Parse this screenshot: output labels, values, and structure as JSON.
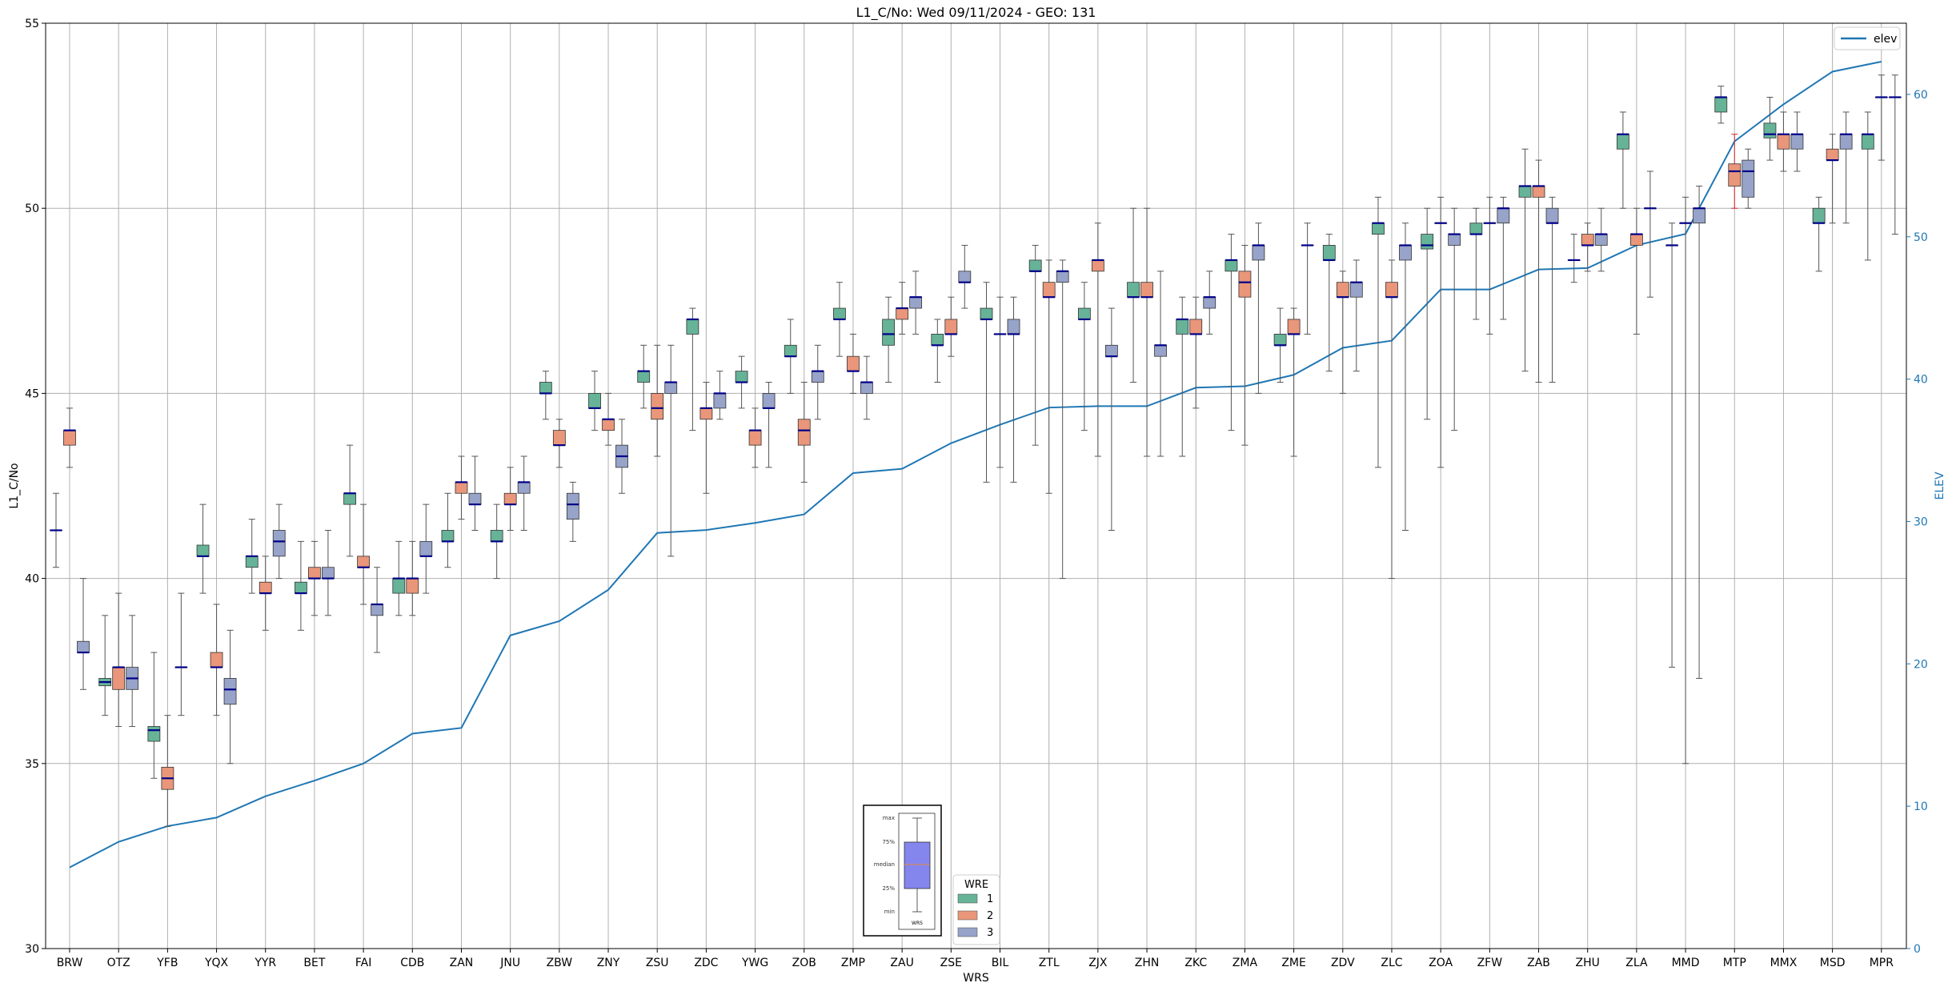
{
  "chart_data": {
    "type": "box",
    "title": "L1_C/No: Wed 09/11/2024 - GEO: 131",
    "xlabel": "WRS",
    "ylabel": "L1_C/No",
    "y2label": "ELEV",
    "ylim": [
      30,
      55
    ],
    "y2lim": [
      0,
      65
    ],
    "yticks": [
      30,
      35,
      40,
      45,
      50,
      55
    ],
    "y2ticks": [
      0,
      10,
      20,
      30,
      40,
      50,
      60
    ],
    "grid": true,
    "categories": [
      "BRW",
      "OTZ",
      "YFB",
      "YQX",
      "YYR",
      "BET",
      "FAI",
      "CDB",
      "ZAN",
      "JNU",
      "ZBW",
      "ZNY",
      "ZSU",
      "ZDC",
      "YWG",
      "ZOB",
      "ZMP",
      "ZAU",
      "ZSE",
      "BIL",
      "ZTL",
      "ZJX",
      "ZHN",
      "ZKC",
      "ZMA",
      "ZME",
      "ZDV",
      "ZLC",
      "ZOA",
      "ZFW",
      "ZAB",
      "ZHU",
      "ZLA",
      "MMD",
      "MTP",
      "MMX",
      "MSD",
      "MPR"
    ],
    "series": [
      {
        "name": "1",
        "color": "#66b398",
        "values": [
          [
            40.3,
            41.3,
            41.3,
            41.3,
            42.3
          ],
          [
            36.3,
            37.1,
            37.2,
            37.3,
            39.0
          ],
          [
            34.6,
            35.6,
            35.9,
            36.0,
            38.0
          ],
          [
            39.6,
            40.6,
            40.6,
            40.9,
            42.0
          ],
          [
            39.6,
            40.3,
            40.6,
            40.6,
            41.6
          ],
          [
            38.6,
            39.6,
            39.6,
            39.9,
            41.0
          ],
          [
            40.6,
            42.0,
            42.3,
            42.3,
            43.6
          ],
          [
            39.0,
            39.6,
            40.0,
            40.0,
            41.0
          ],
          [
            40.3,
            41.0,
            41.0,
            41.3,
            42.3
          ],
          [
            40.0,
            41.0,
            41.0,
            41.3,
            42.0
          ],
          [
            44.3,
            45.0,
            45.0,
            45.3,
            45.6
          ],
          [
            44.0,
            44.6,
            44.6,
            45.0,
            45.6
          ],
          [
            44.6,
            45.3,
            45.6,
            45.6,
            46.3
          ],
          [
            44.0,
            46.6,
            47.0,
            47.0,
            47.3
          ],
          [
            44.6,
            45.3,
            45.3,
            45.6,
            46.0
          ],
          [
            45.0,
            46.0,
            46.0,
            46.3,
            47.0
          ],
          [
            46.0,
            47.0,
            47.0,
            47.3,
            48.0
          ],
          [
            45.3,
            46.3,
            46.6,
            47.0,
            47.6
          ],
          [
            45.3,
            46.3,
            46.3,
            46.6,
            47.0
          ],
          [
            42.6,
            47.0,
            47.0,
            47.3,
            48.0
          ],
          [
            43.6,
            48.3,
            48.3,
            48.6,
            49.0
          ],
          [
            44.0,
            47.0,
            47.0,
            47.3,
            48.0
          ],
          [
            45.3,
            47.6,
            47.6,
            48.0,
            50.0
          ],
          [
            43.3,
            46.6,
            47.0,
            47.0,
            47.6
          ],
          [
            44.0,
            48.3,
            48.6,
            48.6,
            49.3
          ],
          [
            45.3,
            46.3,
            46.3,
            46.6,
            47.3
          ],
          [
            45.6,
            48.6,
            48.6,
            49.0,
            49.3
          ],
          [
            43.0,
            49.3,
            49.6,
            49.6,
            50.3
          ],
          [
            44.3,
            48.9,
            49.0,
            49.3,
            50.0
          ],
          [
            47.0,
            49.3,
            49.3,
            49.6,
            50.0
          ],
          [
            45.6,
            50.3,
            50.6,
            50.6,
            51.6
          ],
          [
            48.0,
            48.6,
            48.6,
            48.6,
            49.3
          ],
          [
            50.0,
            51.6,
            52.0,
            52.0,
            52.6
          ],
          [
            37.6,
            49.0,
            49.0,
            49.0,
            49.6
          ],
          [
            52.3,
            52.6,
            53.0,
            53.0,
            53.3
          ],
          [
            51.3,
            51.9,
            52.0,
            52.3,
            53.0
          ],
          [
            48.3,
            49.6,
            49.6,
            50.0,
            50.3
          ],
          [
            48.6,
            51.6,
            52.0,
            52.0,
            52.6
          ]
        ]
      },
      {
        "name": "2",
        "color": "#e9967a",
        "values": [
          [
            43.0,
            43.6,
            44.0,
            44.0,
            44.6
          ],
          [
            36.0,
            37.0,
            37.6,
            37.6,
            39.6
          ],
          [
            33.3,
            34.3,
            34.6,
            34.9,
            36.3
          ],
          [
            36.3,
            37.6,
            37.6,
            38.0,
            39.3
          ],
          [
            38.6,
            39.6,
            39.6,
            39.9,
            40.6
          ],
          [
            39.0,
            40.0,
            40.0,
            40.3,
            41.0
          ],
          [
            39.3,
            40.3,
            40.3,
            40.6,
            42.0
          ],
          [
            39.0,
            39.6,
            40.0,
            40.0,
            41.0
          ],
          [
            41.6,
            42.3,
            42.6,
            42.6,
            43.3
          ],
          [
            41.3,
            42.0,
            42.0,
            42.3,
            43.0
          ],
          [
            43.0,
            43.6,
            43.6,
            44.0,
            44.3
          ],
          [
            43.6,
            44.0,
            44.3,
            44.3,
            45.0
          ],
          [
            43.3,
            44.3,
            44.6,
            45.0,
            46.3
          ],
          [
            42.3,
            44.3,
            44.6,
            44.6,
            45.3
          ],
          [
            43.0,
            43.6,
            44.0,
            44.0,
            44.6
          ],
          [
            42.6,
            43.6,
            44.0,
            44.3,
            45.3
          ],
          [
            45.0,
            45.6,
            45.6,
            46.0,
            46.6
          ],
          [
            46.6,
            47.0,
            47.3,
            47.3,
            48.0
          ],
          [
            46.0,
            46.6,
            46.6,
            47.0,
            47.6
          ],
          [
            43.0,
            46.6,
            46.6,
            46.6,
            47.6
          ],
          [
            42.3,
            47.6,
            47.6,
            48.0,
            48.6
          ],
          [
            43.3,
            48.3,
            48.6,
            48.6,
            49.6
          ],
          [
            43.3,
            47.6,
            47.6,
            48.0,
            50.0
          ],
          [
            44.6,
            46.6,
            46.6,
            47.0,
            47.6
          ],
          [
            43.6,
            47.6,
            48.0,
            48.3,
            49.0
          ],
          [
            43.3,
            46.6,
            46.6,
            47.0,
            47.3
          ],
          [
            45.0,
            47.6,
            47.6,
            48.0,
            48.3
          ],
          [
            40.0,
            47.6,
            47.6,
            48.0,
            48.6
          ],
          [
            43.0,
            49.6,
            49.6,
            49.6,
            50.3
          ],
          [
            46.6,
            49.6,
            49.6,
            49.6,
            50.3
          ],
          [
            45.3,
            50.3,
            50.6,
            50.6,
            51.3
          ],
          [
            48.3,
            49.0,
            49.0,
            49.3,
            49.6
          ],
          [
            46.6,
            49.0,
            49.3,
            49.3,
            50.0
          ],
          [
            35.0,
            49.6,
            49.6,
            49.6,
            50.3
          ],
          [
            50.0,
            50.6,
            51.0,
            51.2,
            52.0
          ],
          [
            51.0,
            51.6,
            52.0,
            52.0,
            52.6
          ],
          [
            49.6,
            51.3,
            51.3,
            51.6,
            52.0
          ],
          [
            51.3,
            53.0,
            53.0,
            53.0,
            53.6
          ]
        ]
      },
      {
        "name": "3",
        "color": "#97a3c8",
        "values": [
          [
            37.0,
            38.0,
            38.0,
            38.3,
            40.0
          ],
          [
            36.0,
            37.0,
            37.3,
            37.6,
            39.0
          ],
          [
            36.3,
            37.6,
            37.6,
            37.6,
            39.6
          ],
          [
            35.0,
            36.6,
            37.0,
            37.3,
            38.6
          ],
          [
            40.0,
            40.6,
            41.0,
            41.3,
            42.0
          ],
          [
            39.0,
            40.0,
            40.0,
            40.3,
            41.3
          ],
          [
            38.0,
            39.0,
            39.3,
            39.3,
            40.3
          ],
          [
            39.6,
            40.6,
            40.6,
            41.0,
            42.0
          ],
          [
            41.3,
            42.0,
            42.0,
            42.3,
            43.3
          ],
          [
            41.3,
            42.3,
            42.6,
            42.6,
            43.3
          ],
          [
            41.0,
            41.6,
            42.0,
            42.3,
            42.6
          ],
          [
            42.3,
            43.0,
            43.3,
            43.6,
            44.3
          ],
          [
            40.6,
            45.0,
            45.3,
            45.3,
            46.3
          ],
          [
            44.3,
            44.6,
            45.0,
            45.0,
            45.6
          ],
          [
            43.0,
            44.6,
            44.6,
            45.0,
            45.3
          ],
          [
            44.3,
            45.3,
            45.6,
            45.6,
            46.3
          ],
          [
            44.3,
            45.0,
            45.3,
            45.3,
            46.0
          ],
          [
            46.6,
            47.3,
            47.6,
            47.6,
            48.3
          ],
          [
            47.3,
            48.0,
            48.0,
            48.3,
            49.0
          ],
          [
            42.6,
            46.6,
            46.6,
            47.0,
            47.6
          ],
          [
            40.0,
            48.0,
            48.3,
            48.3,
            48.6
          ],
          [
            41.3,
            46.0,
            46.0,
            46.3,
            47.3
          ],
          [
            43.3,
            46.0,
            46.3,
            46.3,
            48.3
          ],
          [
            46.6,
            47.3,
            47.6,
            47.6,
            48.3
          ],
          [
            45.0,
            48.6,
            49.0,
            49.0,
            49.6
          ],
          [
            46.6,
            49.0,
            49.0,
            49.0,
            49.6
          ],
          [
            45.6,
            47.6,
            48.0,
            48.0,
            48.6
          ],
          [
            41.3,
            48.6,
            49.0,
            49.0,
            49.6
          ],
          [
            44.0,
            49.0,
            49.3,
            49.3,
            50.0
          ],
          [
            47.0,
            49.6,
            50.0,
            50.0,
            50.3
          ],
          [
            45.3,
            49.6,
            49.6,
            50.0,
            50.3
          ],
          [
            48.3,
            49.0,
            49.3,
            49.3,
            50.0
          ],
          [
            47.6,
            50.0,
            50.0,
            50.0,
            51.0
          ],
          [
            37.3,
            49.6,
            50.0,
            50.0,
            50.6
          ],
          [
            50.0,
            50.3,
            51.0,
            51.3,
            51.6
          ],
          [
            51.0,
            51.6,
            52.0,
            52.0,
            52.6
          ],
          [
            49.6,
            51.6,
            52.0,
            52.0,
            52.6
          ],
          [
            49.3,
            53.0,
            53.0,
            53.0,
            53.6
          ]
        ]
      }
    ],
    "elev": {
      "name": "elev",
      "color": "#1f77b4",
      "values": [
        5.7,
        7.5,
        8.6,
        9.2,
        10.7,
        11.8,
        13.0,
        15.1,
        15.5,
        22.0,
        23.0,
        25.2,
        29.2,
        29.4,
        29.9,
        30.5,
        33.4,
        33.7,
        35.5,
        36.8,
        38.0,
        38.1,
        38.1,
        39.4,
        39.5,
        40.3,
        42.2,
        42.7,
        46.3,
        46.3,
        47.7,
        47.8,
        49.4,
        50.2,
        56.7,
        59.3,
        61.6,
        62.3
      ]
    },
    "legend": {
      "title": "WRE",
      "labels": [
        "1",
        "2",
        "3"
      ],
      "position": "bottom-center",
      "elev_position": "top-right"
    },
    "key": {
      "labels": [
        "max",
        "75%",
        "median",
        "25%",
        "min"
      ],
      "caption": "WRS"
    }
  }
}
